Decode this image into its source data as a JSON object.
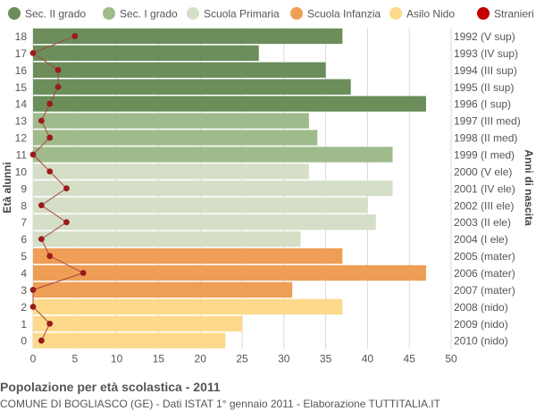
{
  "chart_data": {
    "type": "bar",
    "orientation": "horizontal",
    "title": "Popolazione per età scolastica - 2011",
    "subtitle": "COMUNE DI BOGLIASCO (GE) - Dati ISTAT 1° gennaio 2011 - Elaborazione TUTTITALIA.IT",
    "ylabel_left": "Età alunni",
    "ylabel_right": "Anni di nascita",
    "xlim": [
      0,
      50
    ],
    "x_ticks": [
      "0",
      "5",
      "10",
      "15",
      "20",
      "25",
      "30",
      "35",
      "40",
      "45",
      "50"
    ],
    "grid": "vertical",
    "legend_position": "top",
    "legend": [
      {
        "name": "Sec. II grado",
        "color": "#6b8e5a"
      },
      {
        "name": "Sec. I grado",
        "color": "#9fbb8c"
      },
      {
        "name": "Scuola Primaria",
        "color": "#d5dfc7"
      },
      {
        "name": "Scuola Infanzia",
        "color": "#ee9e55"
      },
      {
        "name": "Asilo Nido",
        "color": "#fdd98b"
      },
      {
        "name": "Stranieri",
        "color": "#c00000"
      }
    ],
    "ages": [
      "18",
      "17",
      "16",
      "15",
      "14",
      "13",
      "12",
      "11",
      "10",
      "9",
      "8",
      "7",
      "6",
      "5",
      "4",
      "3",
      "2",
      "1",
      "0"
    ],
    "birth_years": [
      "1992 (V sup)",
      "1993 (IV sup)",
      "1994 (III sup)",
      "1995 (II sup)",
      "1996 (I sup)",
      "1997 (III med)",
      "1998 (II med)",
      "1999 (I med)",
      "2000 (V ele)",
      "2001 (IV ele)",
      "2002 (III ele)",
      "2003 (II ele)",
      "2004 (I ele)",
      "2005 (mater)",
      "2006 (mater)",
      "2007 (mater)",
      "2008 (nido)",
      "2009 (nido)",
      "2010 (nido)"
    ],
    "categories_school": [
      0,
      0,
      0,
      0,
      0,
      1,
      1,
      1,
      2,
      2,
      2,
      2,
      2,
      3,
      3,
      3,
      4,
      4,
      4
    ],
    "values": [
      37,
      27,
      35,
      38,
      47,
      33,
      34,
      43,
      33,
      43,
      40,
      41,
      32,
      37,
      47,
      31,
      37,
      25,
      23
    ],
    "stranieri": [
      5,
      0,
      3,
      3,
      2,
      1,
      2,
      0,
      2,
      4,
      1,
      4,
      1,
      2,
      6,
      0,
      0,
      2,
      1
    ],
    "colors": {
      "grid": "#d9d9d9",
      "line": "#a94444",
      "dot": "#9b1b1b"
    }
  }
}
